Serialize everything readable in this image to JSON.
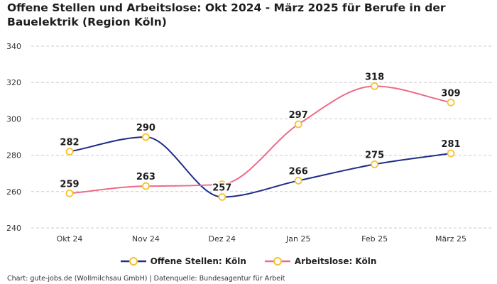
{
  "title": "Offene Stellen und Arbeitslose: Okt 2024 - März 2025 für Berufe in der Bauelektrik (Region Köln)",
  "footer": "Chart: gute-jobs.de (Wollmilchsau GmbH) | Datenquelle: Bundesagentur für Arbeit",
  "colors": {
    "offene": "#1f2d86",
    "arbeitslose": "#ef6a85",
    "marker": "#f6c22b",
    "grid": "#cccccc"
  },
  "chart_data": {
    "type": "line",
    "categories": [
      "Okt 24",
      "Nov 24",
      "Dez 24",
      "Jan 25",
      "Feb 25",
      "März 25"
    ],
    "series": [
      {
        "name": "Offene Stellen: Köln",
        "values": [
          282,
          290,
          257,
          266,
          275,
          281
        ]
      },
      {
        "name": "Arbeitslose: Köln",
        "values": [
          259,
          263,
          264,
          297,
          318,
          309
        ],
        "labels": [
          "259",
          "263",
          "",
          "297",
          "318",
          "309"
        ]
      }
    ],
    "ylim": [
      240,
      340
    ],
    "yticks": [
      240,
      260,
      280,
      300,
      320,
      340
    ],
    "grid": true,
    "legend": "bottom"
  }
}
